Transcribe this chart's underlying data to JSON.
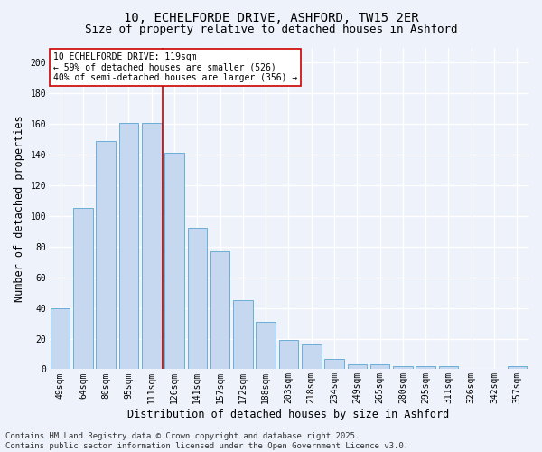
{
  "title1": "10, ECHELFORDE DRIVE, ASHFORD, TW15 2ER",
  "title2": "Size of property relative to detached houses in Ashford",
  "xlabel": "Distribution of detached houses by size in Ashford",
  "ylabel": "Number of detached properties",
  "categories": [
    "49sqm",
    "64sqm",
    "80sqm",
    "95sqm",
    "111sqm",
    "126sqm",
    "141sqm",
    "157sqm",
    "172sqm",
    "188sqm",
    "203sqm",
    "218sqm",
    "234sqm",
    "249sqm",
    "265sqm",
    "280sqm",
    "295sqm",
    "311sqm",
    "326sqm",
    "342sqm",
    "357sqm"
  ],
  "values": [
    40,
    105,
    149,
    161,
    161,
    141,
    92,
    77,
    45,
    31,
    19,
    16,
    7,
    3,
    3,
    2,
    2,
    2,
    0,
    0,
    2
  ],
  "bar_color": "#c5d8f0",
  "bar_edge_color": "#6baed6",
  "bar_width": 0.85,
  "vline_color": "#cc0000",
  "vline_position": 4.5,
  "annotation_text": "10 ECHELFORDE DRIVE: 119sqm\n← 59% of detached houses are smaller (526)\n40% of semi-detached houses are larger (356) →",
  "annotation_box_color": "white",
  "annotation_box_edge": "#cc0000",
  "ylim": [
    0,
    210
  ],
  "yticks": [
    0,
    20,
    40,
    60,
    80,
    100,
    120,
    140,
    160,
    180,
    200
  ],
  "footer": "Contains HM Land Registry data © Crown copyright and database right 2025.\nContains public sector information licensed under the Open Government Licence v3.0.",
  "background_color": "#eef2fb",
  "grid_color": "#ffffff",
  "title_fontsize": 10,
  "subtitle_fontsize": 9,
  "axis_label_fontsize": 8.5,
  "tick_fontsize": 7,
  "annotation_fontsize": 7,
  "footer_fontsize": 6.5
}
